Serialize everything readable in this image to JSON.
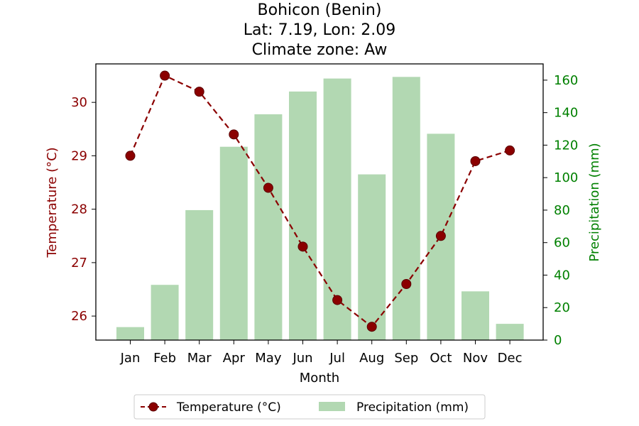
{
  "chart_data": {
    "type": "bar+line",
    "title_lines": [
      "Bohicon (Benin)",
      "Lat: 7.19, Lon: 2.09",
      "Climate zone: Aw"
    ],
    "xlabel": "Month",
    "ylabel_left": "Temperature (°C)",
    "ylabel_right": "Precipitation (mm)",
    "categories": [
      "Jan",
      "Feb",
      "Mar",
      "Apr",
      "May",
      "Jun",
      "Jul",
      "Aug",
      "Sep",
      "Oct",
      "Nov",
      "Dec"
    ],
    "series": [
      {
        "name": "Temperature (°C)",
        "type": "line",
        "axis": "left",
        "values": [
          29.0,
          30.5,
          30.2,
          29.4,
          28.4,
          27.3,
          26.3,
          25.8,
          26.6,
          27.5,
          28.9,
          29.1
        ]
      },
      {
        "name": "Precipitation (mm)",
        "type": "bar",
        "axis": "right",
        "values": [
          8,
          34,
          80,
          119,
          139,
          153,
          161,
          102,
          162,
          127,
          30,
          10
        ]
      }
    ],
    "ylim_left": [
      25.55,
      30.72
    ],
    "yticks_left": [
      26,
      27,
      28,
      29,
      30
    ],
    "ylim_right": [
      0,
      170
    ],
    "yticks_right": [
      0,
      20,
      40,
      60,
      80,
      100,
      120,
      140,
      160
    ],
    "grid": false,
    "legend_placement": "bottom-center"
  },
  "colors": {
    "temperature": "#8b0000",
    "temperature_marker_edge": "#5a0000",
    "precipitation_bar": "#b2d8b2",
    "left_axis": "#8b0000",
    "right_axis": "#008000"
  }
}
